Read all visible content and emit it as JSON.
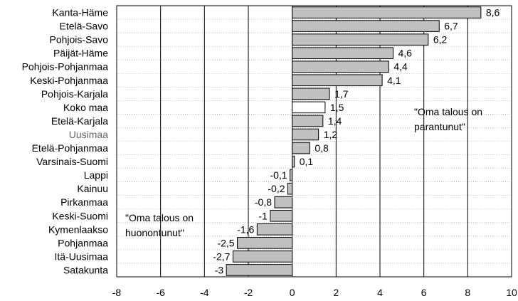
{
  "chart_data": {
    "type": "bar",
    "orientation": "horizontal",
    "categories": [
      "Kanta-Häme",
      "Etelä-Savo",
      "Pohjois-Savo",
      "Päijät-Häme",
      "Pohjois-Pohjanmaa",
      "Keski-Pohjanmaa",
      "Pohjois-Karjala",
      "Koko maa",
      "Etelä-Karjala",
      "Uusimaa",
      "Etelä-Pohjanmaa",
      "Varsinais-Suomi",
      "Lappi",
      "Kainuu",
      "Pirkanmaa",
      "Keski-Suomi",
      "Kymenlaakso",
      "Pohjanmaa",
      "Itä-Uusimaa",
      "Satakunta"
    ],
    "values": [
      8.6,
      6.7,
      6.2,
      4.6,
      4.4,
      4.1,
      1.7,
      1.5,
      1.4,
      1.2,
      0.8,
      0.1,
      -0.1,
      -0.2,
      -0.8,
      -1,
      -1.6,
      -2.5,
      -2.7,
      -3
    ],
    "value_labels": [
      "8,6",
      "6,7",
      "6,2",
      "4,6",
      "4,4",
      "4,1",
      "1,7",
      "1,5",
      "1,4",
      "1,2",
      "0,8",
      "0,1",
      "-0,1",
      "-0,2",
      "-0,8",
      "-1",
      "-1,6",
      "-2,5",
      "-2,7",
      "-3"
    ],
    "xlim": [
      -8,
      10
    ],
    "xticks": [
      -8,
      -6,
      -4,
      -2,
      0,
      2,
      4,
      6,
      8,
      10
    ],
    "grid": "vertical",
    "colors": {
      "bar": "#c0c0c0",
      "bar_highlight": "#ffffff",
      "grid": "#000000",
      "row_line": "#999999"
    },
    "highlight_category": "Koko maa",
    "muted_category": "Uusimaa",
    "annotations": {
      "positive_line1": "\"Oma talous on",
      "positive_line2": "parantunut\"",
      "negative_line1": "\"Oma talous on",
      "negative_line2": "huonontunut\""
    }
  }
}
